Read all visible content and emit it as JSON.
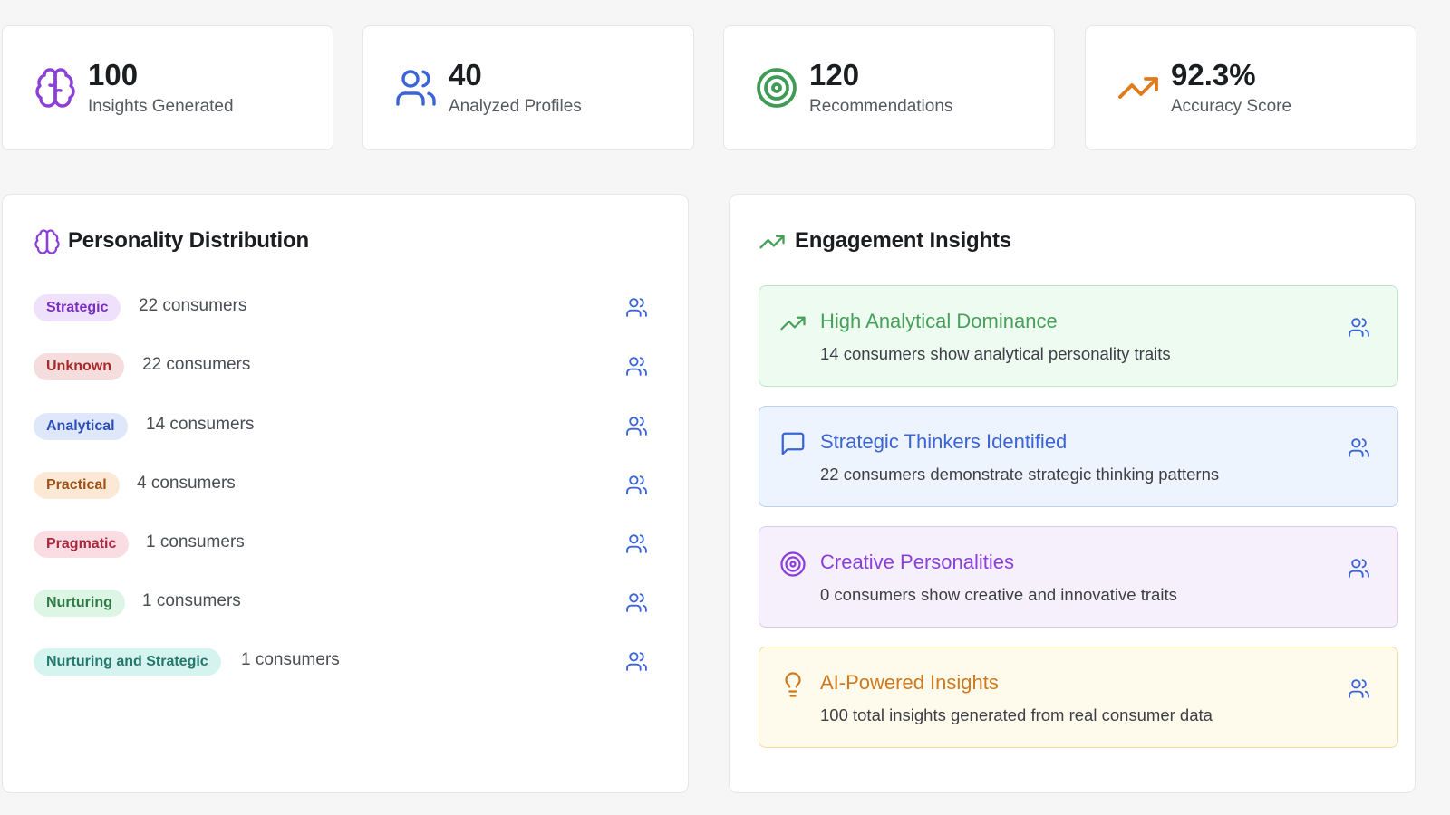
{
  "stats": [
    {
      "value": "100",
      "label": "Insights Generated",
      "icon": "brain-icon",
      "color": "#8b3fd9"
    },
    {
      "value": "40",
      "label": "Analyzed Profiles",
      "icon": "users-icon",
      "color": "#3a64d8"
    },
    {
      "value": "120",
      "label": "Recommendations",
      "icon": "target-icon",
      "color": "#3f9b55"
    },
    {
      "value": "92.3%",
      "label": "Accuracy Score",
      "icon": "trending-up-icon",
      "color": "#e07a1b"
    }
  ],
  "personality": {
    "title": "Personality Distribution",
    "icon": "brain-icon",
    "rows": [
      {
        "label": "Strategic",
        "count": "22 consumers",
        "bg": "#efe1fb",
        "fg": "#7a2fc2"
      },
      {
        "label": "Unknown",
        "count": "22 consumers",
        "bg": "#f6dddd",
        "fg": "#a52a2a"
      },
      {
        "label": "Analytical",
        "count": "14 consumers",
        "bg": "#dfe8fb",
        "fg": "#2d4fb8"
      },
      {
        "label": "Practical",
        "count": "4 consumers",
        "bg": "#fbe9d6",
        "fg": "#a0521a"
      },
      {
        "label": "Pragmatic",
        "count": "1 consumers",
        "bg": "#f9dde2",
        "fg": "#a8283f"
      },
      {
        "label": "Nurturing",
        "count": "1 consumers",
        "bg": "#dcf5e4",
        "fg": "#2f7a45"
      },
      {
        "label": "Nurturing and Strategic",
        "count": "1 consumers",
        "bg": "#d6f4ef",
        "fg": "#24776b"
      }
    ]
  },
  "engagement": {
    "title": "Engagement Insights",
    "icon": "trending-up-icon",
    "cards": [
      {
        "title": "High Analytical Dominance",
        "desc": "14 consumers show analytical personality traits",
        "icon": "trending-up-icon",
        "bg": "#eefbf0",
        "border": "#bfe6c8",
        "fg": "#46a05a"
      },
      {
        "title": "Strategic Thinkers Identified",
        "desc": "22 consumers demonstrate strategic thinking patterns",
        "icon": "message-icon",
        "bg": "#eef4fd",
        "border": "#bcd0f0",
        "fg": "#3a64d8"
      },
      {
        "title": "Creative Personalities",
        "desc": "0 consumers show creative and innovative traits",
        "icon": "target-icon",
        "bg": "#f6f0fd",
        "border": "#dcc9f3",
        "fg": "#8b3fd9"
      },
      {
        "title": "AI-Powered Insights",
        "desc": "100 total insights generated from real consumer data",
        "icon": "lightbulb-icon",
        "bg": "#fefaec",
        "border": "#f2dda0",
        "fg": "#cf7a1e"
      }
    ]
  }
}
